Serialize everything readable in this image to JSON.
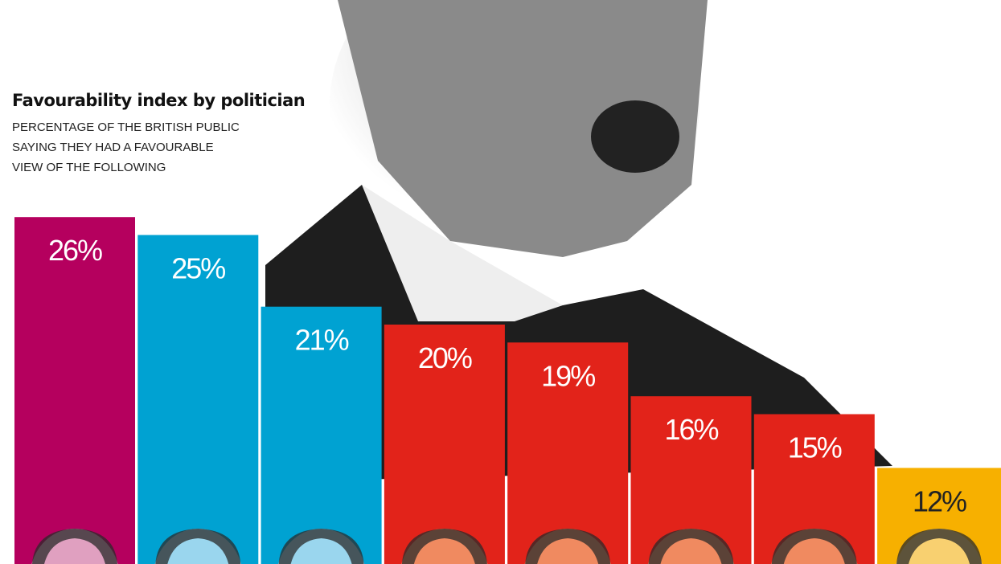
{
  "chart_data": {
    "type": "bar",
    "title": "Favourability index by politician",
    "subtitle": [
      "PERCENTAGE OF THE BRITISH PUBLIC",
      "SAYING THEY HAD A FAVOURABLE",
      "VIEW OF THE FOLLOWING"
    ],
    "values": [
      26,
      25,
      21,
      20,
      19,
      16,
      15,
      12
    ],
    "labels": [
      "26%",
      "25%",
      "21%",
      "20%",
      "19%",
      "16%",
      "15%",
      "12%"
    ],
    "colors": [
      "#b5005e",
      "#00a2d2",
      "#00a2d2",
      "#e2231a",
      "#e2231a",
      "#e2231a",
      "#e2231a",
      "#f7b000"
    ],
    "face_tints": [
      "#e0a0c0",
      "#9ad6ee",
      "#9ad6ee",
      "#f08a60",
      "#f08a60",
      "#f08a60",
      "#f08a60",
      "#f8d070"
    ],
    "label_colors": [
      "#ffffff",
      "#ffffff",
      "#ffffff",
      "#ffffff",
      "#ffffff",
      "#ffffff",
      "#ffffff",
      "#222222"
    ],
    "grid": false,
    "legend": "none"
  }
}
